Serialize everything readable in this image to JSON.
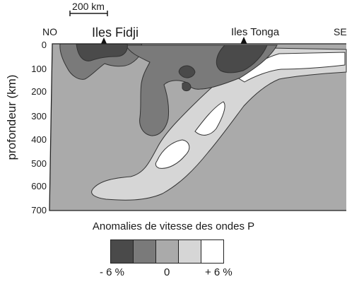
{
  "scale_bar": {
    "label": "200 km"
  },
  "directions": {
    "left": "NO",
    "right": "SE"
  },
  "places": [
    {
      "name": "Iles Fidji"
    },
    {
      "name": "Iles Tonga"
    }
  ],
  "axis": {
    "ylabel": "profondeur (km)",
    "yticks": [
      "0",
      "100",
      "200",
      "300",
      "400",
      "500",
      "600",
      "700"
    ]
  },
  "legend": {
    "title": "Anomalies de vitesse des ondes P",
    "colors": [
      "#4a4a4a",
      "#7a7a7a",
      "#aaaaaa",
      "#d6d6d6",
      "#ffffff"
    ],
    "ticks": [
      "- 6 %",
      "0",
      "+ 6 %"
    ]
  }
}
